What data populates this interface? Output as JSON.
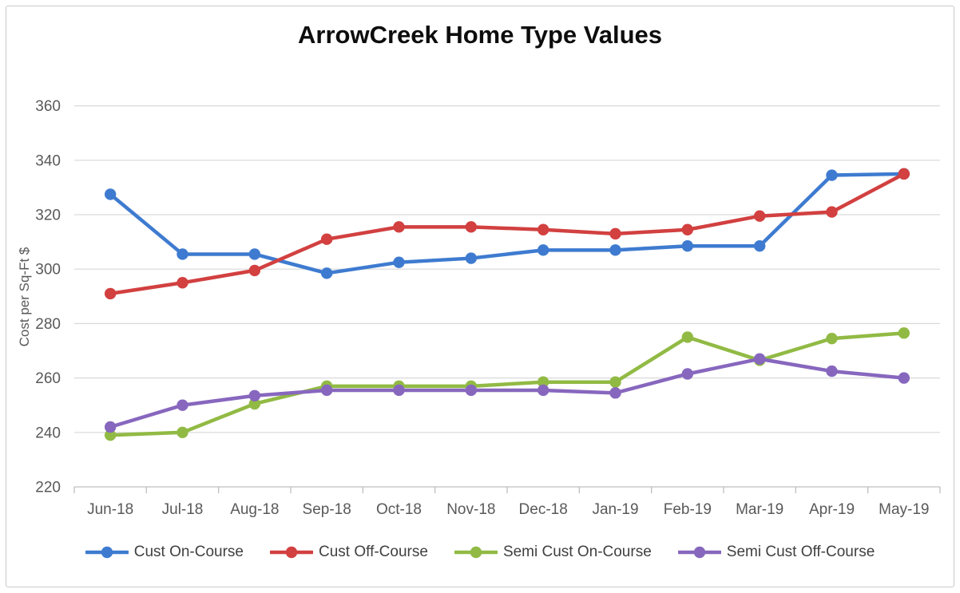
{
  "chart_data": {
    "type": "line",
    "title": "ArrowCreek Home Type Values",
    "ylabel": "Cost per Sq-Ft $",
    "xlabel": "",
    "ylim": [
      220,
      360
    ],
    "yticks": [
      220,
      240,
      260,
      280,
      300,
      320,
      340,
      360
    ],
    "grid": true,
    "legend_position": "bottom",
    "marker": "circle",
    "categories": [
      "Jun-18",
      "Jul-18",
      "Aug-18",
      "Sep-18",
      "Oct-18",
      "Nov-18",
      "Dec-18",
      "Jan-19",
      "Feb-19",
      "Mar-19",
      "Apr-19",
      "May-19"
    ],
    "series": [
      {
        "name": "Cust On-Course",
        "color": "#3E7BD0",
        "values": [
          327.5,
          305.5,
          305.5,
          298.5,
          302.5,
          304,
          307,
          307,
          308.5,
          308.5,
          334.5,
          335
        ]
      },
      {
        "name": "Cust Off-Course",
        "color": "#D24040",
        "values": [
          291,
          295,
          299.5,
          311,
          315.5,
          315.5,
          314.5,
          313,
          314.5,
          319.5,
          321,
          335
        ]
      },
      {
        "name": "Semi Cust On-Course",
        "color": "#91BA44",
        "values": [
          239,
          240,
          250.5,
          257,
          257,
          257,
          258.5,
          258.5,
          275,
          266.5,
          274.5,
          276.5
        ]
      },
      {
        "name": "Semi Cust Off-Course",
        "color": "#8767BE",
        "values": [
          242,
          250,
          253.5,
          255.5,
          255.5,
          255.5,
          255.5,
          254.5,
          261.5,
          267,
          262.5,
          260
        ]
      }
    ],
    "colors": {
      "gridline": "#D9D9D9",
      "axis_line": "#BFBFBF",
      "tick_label": "#595959",
      "title": "#0d0d0d",
      "legend_text": "#404040"
    }
  }
}
